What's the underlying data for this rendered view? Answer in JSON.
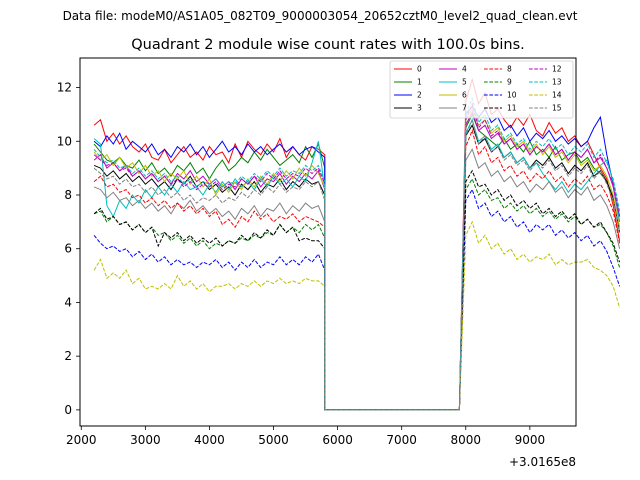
{
  "chart_data": {
    "type": "line",
    "suptitle": "Data file: modeM0/AS1A05_082T09_9000003054_20652cztM0_level2_quad_clean.evt",
    "title": "Quadrant 2 module wise count rates with 100.0s bins.",
    "xlabel": "",
    "ylabel": "",
    "x_offset_label": "+3.0165e8",
    "xlim": [
      1980,
      9720
    ],
    "ylim": [
      -0.6,
      13.1
    ],
    "xticks": [
      2000,
      3000,
      4000,
      5000,
      6000,
      7000,
      8000,
      9000
    ],
    "yticks": [
      0,
      2,
      4,
      6,
      8,
      10,
      12
    ],
    "grid": false,
    "legend_position": "top-right",
    "legend_columns": 4,
    "x": {
      "start": 2200,
      "step": 100,
      "count": 73
    },
    "gap": {
      "from": 5800,
      "to": 7900
    },
    "series": [
      {
        "name": "0",
        "color": "#ff0000",
        "dash": "solid",
        "seg1": [
          10.6,
          10.8,
          10.0,
          10.3,
          9.9,
          10.2,
          9.8,
          9.6,
          9.9,
          9.4,
          9.3,
          9.7,
          9.2,
          9.5,
          9.8,
          9.4,
          9.6,
          9.3,
          9.8,
          9.5,
          9.6,
          9.2,
          9.9,
          9.4,
          10.0,
          9.7,
          9.5,
          9.9,
          9.6,
          10.1,
          9.4,
          9.8,
          9.5,
          9.3,
          9.8,
          9.7,
          9.5
        ],
        "seg2": [
          11.5,
          12.3,
          11.4,
          11.8,
          11.0,
          11.2,
          10.8,
          10.5,
          10.9,
          10.6,
          11.0,
          10.4,
          10.2,
          10.7,
          10.3,
          10.5,
          10.0,
          10.2,
          9.8,
          10.0,
          9.5,
          9.0,
          8.6,
          7.6,
          6.3
        ]
      },
      {
        "name": "1",
        "color": "#008000",
        "dash": "solid",
        "seg1": [
          9.9,
          9.6,
          9.3,
          9.2,
          9.4,
          9.1,
          9.0,
          9.3,
          8.9,
          9.2,
          8.8,
          9.0,
          8.7,
          9.1,
          8.9,
          9.2,
          8.8,
          9.0,
          8.6,
          9.0,
          9.3,
          8.9,
          9.1,
          9.4,
          9.2,
          9.6,
          9.3,
          9.7,
          9.4,
          9.1,
          9.3,
          9.5,
          9.2,
          9.8,
          9.4,
          9.9,
          9.0
        ],
        "seg2": [
          10.5,
          11.0,
          10.4,
          10.2,
          10.0,
          9.8,
          10.1,
          9.7,
          9.9,
          9.6,
          10.0,
          9.5,
          9.7,
          9.4,
          9.8,
          9.3,
          9.5,
          9.6,
          9.2,
          9.4,
          9.0,
          8.8,
          8.5,
          7.8,
          6.8
        ]
      },
      {
        "name": "2",
        "color": "#0000ff",
        "dash": "solid",
        "seg1": [
          10.0,
          9.8,
          10.2,
          9.9,
          10.3,
          9.7,
          10.0,
          9.8,
          9.6,
          9.9,
          9.5,
          9.7,
          9.4,
          9.8,
          9.6,
          9.9,
          9.5,
          9.8,
          9.4,
          9.7,
          10.0,
          9.6,
          9.8,
          9.5,
          9.9,
          9.6,
          9.8,
          9.5,
          9.7,
          9.9,
          9.6,
          9.8,
          9.5,
          9.7,
          9.8,
          9.6,
          9.4
        ],
        "seg2": [
          11.0,
          11.3,
          10.9,
          11.2,
          10.7,
          10.9,
          10.4,
          10.6,
          10.2,
          10.5,
          10.0,
          10.3,
          10.1,
          10.4,
          10.0,
          10.2,
          9.9,
          10.1,
          9.8,
          10.0,
          10.5,
          10.9,
          9.5,
          8.4,
          7.2
        ]
      },
      {
        "name": "3",
        "color": "#000000",
        "dash": "solid",
        "seg1": [
          9.1,
          9.0,
          8.7,
          8.9,
          8.6,
          8.8,
          8.5,
          8.7,
          8.4,
          8.6,
          8.3,
          8.5,
          8.2,
          8.6,
          8.4,
          8.7,
          8.3,
          8.5,
          8.2,
          8.4,
          8.1,
          8.3,
          8.0,
          8.4,
          8.2,
          8.5,
          8.1,
          8.4,
          8.3,
          8.6,
          8.2,
          8.5,
          8.3,
          8.6,
          8.4,
          8.5,
          8.0
        ],
        "seg2": [
          10.2,
          10.6,
          9.9,
          10.1,
          9.6,
          9.8,
          9.4,
          9.6,
          9.2,
          9.4,
          9.0,
          9.3,
          9.1,
          9.4,
          9.0,
          9.2,
          8.8,
          9.1,
          8.9,
          9.2,
          8.7,
          8.9,
          8.5,
          7.9,
          6.6
        ]
      },
      {
        "name": "4",
        "color": "#bf00bf",
        "dash": "solid",
        "seg1": [
          9.3,
          9.5,
          9.0,
          9.2,
          8.9,
          9.1,
          8.7,
          8.9,
          8.6,
          8.8,
          8.5,
          8.7,
          8.4,
          8.8,
          8.6,
          8.9,
          8.5,
          8.7,
          8.4,
          8.6,
          8.3,
          8.5,
          8.2,
          8.6,
          8.4,
          8.7,
          8.3,
          8.6,
          8.5,
          8.8,
          8.4,
          8.7,
          8.5,
          8.8,
          8.6,
          8.9,
          8.2
        ],
        "seg2": [
          10.6,
          11.1,
          10.4,
          10.6,
          10.1,
          10.3,
          9.9,
          10.1,
          9.7,
          9.9,
          9.5,
          9.8,
          9.6,
          9.9,
          9.5,
          9.7,
          9.3,
          9.6,
          9.4,
          9.7,
          9.2,
          9.4,
          9.0,
          8.3,
          7.0
        ]
      },
      {
        "name": "5",
        "color": "#00bfbf",
        "dash": "solid",
        "seg1": [
          10.1,
          9.9,
          7.6,
          7.2,
          7.8,
          7.5,
          8.0,
          7.7,
          8.2,
          7.9,
          8.3,
          8.0,
          8.4,
          8.1,
          8.5,
          8.2,
          8.3,
          8.0,
          8.4,
          8.1,
          8.5,
          8.2,
          8.6,
          8.3,
          8.5,
          8.2,
          8.6,
          8.3,
          8.7,
          8.4,
          8.6,
          8.3,
          8.7,
          8.5,
          9.2,
          10.0,
          8.2
        ],
        "seg2": [
          10.3,
          10.8,
          10.0,
          10.2,
          9.7,
          9.9,
          9.4,
          9.6,
          9.2,
          9.4,
          9.0,
          9.2,
          8.8,
          8.5,
          8.2,
          8.5,
          8.1,
          8.4,
          8.2,
          8.5,
          8.8,
          9.1,
          9.3,
          8.5,
          7.0
        ]
      },
      {
        "name": "6",
        "color": "#bfbf00",
        "dash": "solid",
        "seg1": [
          9.6,
          9.3,
          9.5,
          9.1,
          9.4,
          9.0,
          9.2,
          8.8,
          9.1,
          8.7,
          8.9,
          8.5,
          8.8,
          8.6,
          8.9,
          8.4,
          8.7,
          8.3,
          8.6,
          8.0,
          8.4,
          8.1,
          8.5,
          8.2,
          8.6,
          8.3,
          8.7,
          8.4,
          8.8,
          8.5,
          8.9,
          8.6,
          9.0,
          8.7,
          9.1,
          8.8,
          8.3
        ],
        "seg2": [
          10.8,
          11.2,
          10.6,
          10.8,
          10.3,
          10.5,
          10.0,
          10.2,
          9.8,
          10.0,
          9.6,
          9.9,
          9.5,
          9.8,
          9.4,
          9.6,
          9.2,
          9.5,
          9.1,
          9.3,
          8.9,
          9.1,
          8.7,
          8.0,
          6.8
        ]
      },
      {
        "name": "7",
        "color": "#808080",
        "dash": "solid",
        "seg1": [
          8.3,
          8.2,
          7.9,
          8.1,
          7.8,
          7.9,
          7.6,
          7.8,
          7.5,
          7.7,
          7.4,
          7.6,
          7.3,
          7.7,
          7.5,
          7.8,
          7.4,
          7.6,
          7.3,
          7.5,
          7.2,
          7.4,
          7.1,
          7.5,
          7.3,
          7.6,
          7.2,
          7.5,
          7.4,
          7.7,
          7.3,
          7.6,
          7.4,
          7.7,
          7.5,
          7.6,
          7.0
        ],
        "seg2": [
          9.3,
          9.7,
          9.0,
          9.2,
          8.7,
          8.9,
          8.5,
          8.7,
          8.3,
          8.5,
          8.1,
          8.4,
          8.2,
          8.5,
          8.1,
          8.3,
          7.9,
          8.2,
          8.0,
          8.3,
          7.8,
          8.0,
          7.6,
          7.0,
          6.0
        ]
      },
      {
        "name": "8",
        "color": "#ff0000",
        "dash": "dashed",
        "seg1": [
          8.5,
          8.7,
          8.3,
          8.4,
          8.1,
          8.2,
          7.9,
          8.0,
          7.7,
          7.9,
          7.6,
          7.8,
          7.5,
          7.7,
          7.4,
          7.6,
          7.3,
          7.5,
          7.2,
          7.4,
          6.9,
          7.1,
          6.8,
          7.2,
          7.0,
          7.4,
          7.1,
          7.3,
          7.0,
          7.2,
          7.1,
          7.3,
          7.0,
          7.2,
          7.1,
          7.0,
          6.8
        ],
        "seg2": [
          9.8,
          10.4,
          9.5,
          9.8,
          9.2,
          9.4,
          8.9,
          9.1,
          8.7,
          8.9,
          8.5,
          8.8,
          8.6,
          8.9,
          8.5,
          8.7,
          8.3,
          8.6,
          8.4,
          8.7,
          8.2,
          8.4,
          8.0,
          7.4,
          6.2
        ]
      },
      {
        "name": "9",
        "color": "#008000",
        "dash": "dashed",
        "seg1": [
          7.3,
          7.4,
          7.0,
          7.2,
          6.9,
          7.0,
          6.7,
          6.9,
          6.6,
          6.8,
          6.5,
          6.6,
          6.3,
          6.5,
          6.2,
          6.4,
          6.1,
          6.3,
          6.0,
          6.2,
          6.1,
          6.3,
          6.2,
          6.4,
          6.3,
          6.5,
          6.4,
          6.6,
          6.5,
          6.9,
          6.6,
          6.8,
          6.6,
          6.9,
          6.7,
          6.9,
          6.4
        ],
        "seg2": [
          8.2,
          8.6,
          8.0,
          8.2,
          7.8,
          7.9,
          7.5,
          7.7,
          7.4,
          7.6,
          7.3,
          7.5,
          7.2,
          7.4,
          7.1,
          7.3,
          7.0,
          7.2,
          6.9,
          7.1,
          6.8,
          6.9,
          6.6,
          6.1,
          5.3
        ]
      },
      {
        "name": "10",
        "color": "#0000ff",
        "dash": "dashed",
        "seg1": [
          6.5,
          6.2,
          6.0,
          6.1,
          5.9,
          6.0,
          5.7,
          5.9,
          5.6,
          5.8,
          5.5,
          5.7,
          5.4,
          5.6,
          5.4,
          5.5,
          5.3,
          5.5,
          5.4,
          5.6,
          5.3,
          5.5,
          5.2,
          5.5,
          5.3,
          5.6,
          5.3,
          5.5,
          5.4,
          5.7,
          5.4,
          5.6,
          5.4,
          5.7,
          5.5,
          5.8,
          5.2
        ],
        "seg2": [
          7.8,
          8.2,
          7.5,
          7.7,
          7.2,
          7.4,
          7.0,
          7.2,
          6.8,
          7.0,
          6.6,
          6.9,
          6.7,
          6.9,
          6.5,
          6.7,
          6.4,
          6.6,
          6.3,
          6.5,
          6.1,
          6.3,
          5.9,
          5.3,
          4.6
        ]
      },
      {
        "name": "11",
        "color": "#000000",
        "dash": "dashed",
        "seg1": [
          7.3,
          7.5,
          7.1,
          7.2,
          6.9,
          7.0,
          6.7,
          6.9,
          6.6,
          6.8,
          6.1,
          6.6,
          6.4,
          6.6,
          6.3,
          6.5,
          6.2,
          6.4,
          6.2,
          6.4,
          6.1,
          6.3,
          6.2,
          6.5,
          6.3,
          6.6,
          6.4,
          6.7,
          6.5,
          6.9,
          6.6,
          6.8,
          6.3,
          6.4,
          6.3,
          6.3,
          6.0
        ],
        "seg2": [
          8.5,
          8.9,
          8.3,
          8.4,
          8.0,
          8.2,
          7.8,
          8.0,
          7.6,
          7.8,
          7.5,
          7.7,
          7.3,
          7.5,
          7.2,
          7.4,
          7.1,
          7.3,
          6.9,
          7.1,
          6.8,
          7.0,
          6.6,
          6.2,
          5.5
        ]
      },
      {
        "name": "12",
        "color": "#bf00bf",
        "dash": "dashed",
        "seg1": [
          9.5,
          9.3,
          9.1,
          9.2,
          8.9,
          9.0,
          8.7,
          8.9,
          8.6,
          8.8,
          8.5,
          8.7,
          8.4,
          8.6,
          8.3,
          8.5,
          8.2,
          8.4,
          8.3,
          8.5,
          8.2,
          8.4,
          8.3,
          8.6,
          8.4,
          8.7,
          8.5,
          8.8,
          8.6,
          8.9,
          8.6,
          8.8,
          8.7,
          9.0,
          8.8,
          9.0,
          8.4
        ],
        "seg2": [
          10.8,
          11.4,
          10.5,
          10.8,
          10.2,
          10.4,
          9.9,
          10.1,
          9.7,
          9.9,
          9.5,
          9.8,
          9.6,
          9.9,
          9.5,
          9.7,
          9.3,
          9.6,
          9.4,
          9.7,
          9.2,
          9.5,
          9.0,
          8.4,
          7.2
        ]
      },
      {
        "name": "13",
        "color": "#00bfbf",
        "dash": "dashed",
        "seg1": [
          9.7,
          9.4,
          9.2,
          9.3,
          9.0,
          9.1,
          8.8,
          9.0,
          8.7,
          8.9,
          8.6,
          8.8,
          8.5,
          8.7,
          8.4,
          8.6,
          8.3,
          8.5,
          8.4,
          8.6,
          8.3,
          8.5,
          8.4,
          8.7,
          8.5,
          8.8,
          8.6,
          8.9,
          8.7,
          9.0,
          8.7,
          8.9,
          8.8,
          9.1,
          8.9,
          9.1,
          8.5
        ],
        "seg2": [
          11.0,
          11.6,
          10.7,
          11.0,
          10.4,
          10.6,
          10.1,
          10.3,
          9.9,
          10.1,
          9.7,
          10.0,
          9.8,
          10.1,
          9.7,
          9.9,
          9.5,
          9.8,
          9.6,
          9.9,
          9.4,
          9.7,
          9.2,
          8.6,
          7.4
        ]
      },
      {
        "name": "14",
        "color": "#bfbf00",
        "dash": "dashed",
        "seg1": [
          5.2,
          5.6,
          4.9,
          5.1,
          4.9,
          5.2,
          4.7,
          4.9,
          4.5,
          4.6,
          4.5,
          4.7,
          4.5,
          5.0,
          4.6,
          4.8,
          4.5,
          4.7,
          4.4,
          4.6,
          4.6,
          4.7,
          4.5,
          4.7,
          4.6,
          4.8,
          4.6,
          4.8,
          4.7,
          4.9,
          4.7,
          4.8,
          4.7,
          4.9,
          4.8,
          4.8,
          4.6
        ],
        "seg2": [
          6.5,
          7.0,
          6.2,
          6.5,
          6.0,
          6.2,
          5.8,
          6.0,
          5.6,
          5.8,
          5.5,
          5.7,
          5.6,
          5.8,
          5.4,
          5.6,
          5.4,
          5.5,
          5.5,
          5.6,
          5.3,
          5.2,
          5.0,
          4.6,
          3.8
        ]
      },
      {
        "name": "15",
        "color": "#808080",
        "dash": "dashed",
        "seg1": [
          9.0,
          8.8,
          8.6,
          8.7,
          8.4,
          8.6,
          8.3,
          8.4,
          8.1,
          8.3,
          8.0,
          8.2,
          7.9,
          8.1,
          7.8,
          8.0,
          7.7,
          7.9,
          7.8,
          8.0,
          7.7,
          7.9,
          7.8,
          8.1,
          7.9,
          8.2,
          8.0,
          8.3,
          8.1,
          8.4,
          8.1,
          8.3,
          8.2,
          8.5,
          8.3,
          8.5,
          7.8
        ],
        "seg2": [
          10.2,
          10.8,
          9.9,
          10.2,
          9.6,
          9.8,
          9.3,
          9.5,
          9.1,
          9.3,
          8.9,
          9.2,
          9.0,
          9.3,
          8.9,
          9.1,
          8.7,
          9.0,
          8.8,
          9.1,
          8.6,
          8.9,
          8.4,
          7.8,
          6.6
        ]
      }
    ]
  }
}
